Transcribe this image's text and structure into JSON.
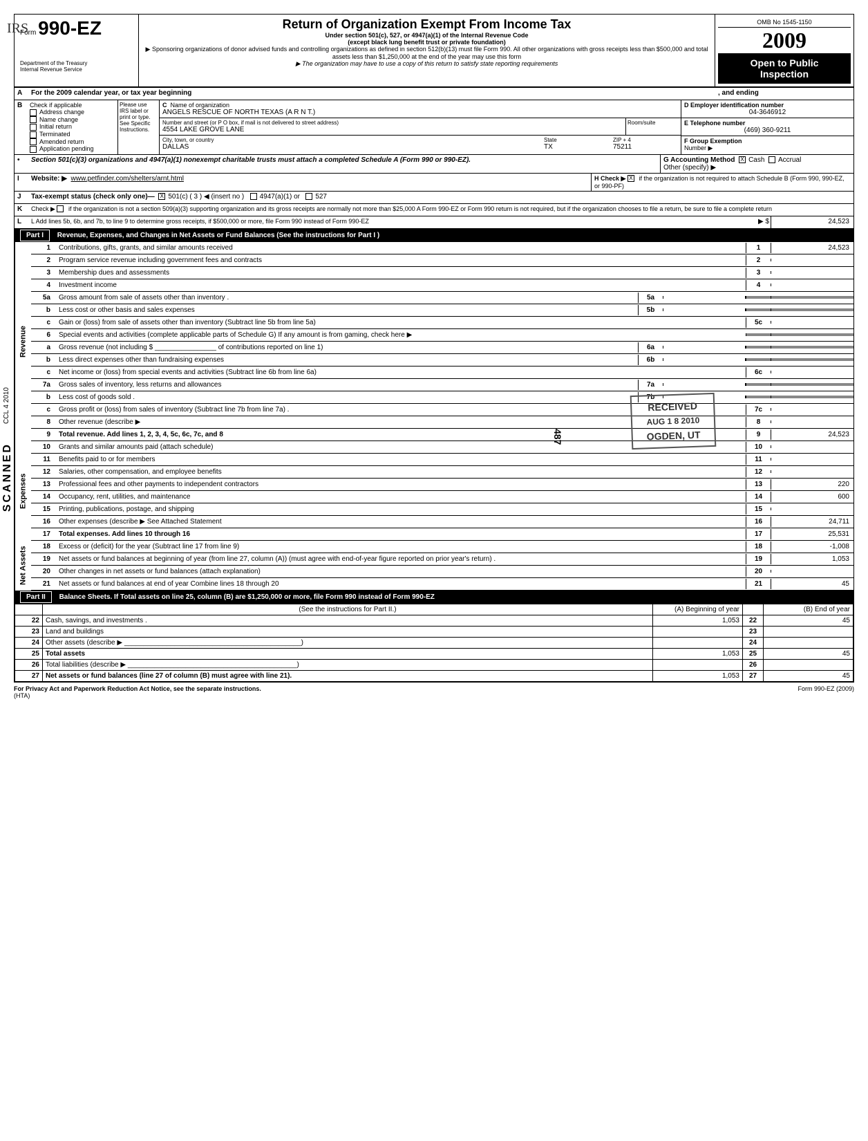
{
  "handwritten_margin": "IRS",
  "header": {
    "form_word": "Form",
    "form_number": "990-EZ",
    "dept": "Department of the Treasury",
    "irs": "Internal Revenue Service",
    "title": "Return of Organization Exempt From Income Tax",
    "subtitle1": "Under section 501(c), 527, or 4947(a)(1) of the Internal Revenue Code",
    "subtitle2": "(except black lung benefit trust or private foundation)",
    "sponsor_note": "▶ Sponsoring organizations of donor advised funds and controlling organizations as defined in section 512(b)(13) must file Form 990. All other organizations with gross receipts less than $500,000 and total assets less than $1,250,000 at the end of the year may use this form",
    "copy_note": "▶ The organization may have to use a copy of this return to satisfy state reporting requirements",
    "omb": "OMB No 1545-1150",
    "year": "2009",
    "open_public": "Open to Public",
    "inspection": "Inspection"
  },
  "section_a": {
    "label": "For the 2009 calendar year, or tax year beginning",
    "ending": ", and ending"
  },
  "section_b": {
    "header": "Check if applicable",
    "please": "Please use IRS label or print or type. See Specific Instructions.",
    "items": [
      "Address change",
      "Name change",
      "Initial return",
      "Terminated",
      "Amended return",
      "Application pending"
    ],
    "c_label": "C  Name of organization",
    "org_name": "ANGELS RESCUE OF NORTH TEXAS (A R N T.)",
    "addr_label": "Number and street (or P O box, if mail is not delivered to street address)",
    "room_label": "Room/suite",
    "street": "4554 LAKE GROVE LANE",
    "city_label": "City, town, or country",
    "state_label": "State",
    "zip_label": "ZIP + 4",
    "city": "DALLAS",
    "state": "TX",
    "zip": "75211",
    "d_label": "D  Employer identification number",
    "ein": "04-3646912",
    "e_label": "E  Telephone number",
    "phone": "(469) 360-9211",
    "f_label": "F  Group Exemption",
    "f_label2": "Number  ▶"
  },
  "bullet_501c3": "Section 501(c)(3) organizations and 4947(a)(1) nonexempt charitable trusts must attach a completed Schedule A (Form 990 or 990-EZ).",
  "g_label": "G  Accounting Method",
  "g_cash": "Cash",
  "g_accrual": "Accrual",
  "g_other": "Other (specify) ▶",
  "h_label": "H  Check ▶",
  "h_text": "if the organization is not required to attach Schedule B (Form 990, 990-EZ, or 990-PF)",
  "i_label": "Website: ▶",
  "website": "www.petfinder.com/shelters/arnt.html",
  "j_label": "Tax-exempt status (check only one)—",
  "j_501c": "501(c) (   3   ) ◀ (insert no )",
  "j_4947": "4947(a)(1) or",
  "j_527": "527",
  "k_label": "K  Check ▶",
  "k_text": "if the organization is not a section 509(a)(3) supporting organization and its gross receipts are normally not more than $25,000 A Form 990-EZ or Form 990 return is not required, but if the organization chooses to file a return, be sure to file a complete return",
  "l_label": "L  Add lines 5b, 6b, and 7b, to line 9 to determine gross receipts, if $500,000 or more, file Form 990 instead of Form 990-EZ",
  "l_arrow": "▶ $",
  "l_value": "24,523",
  "part1": {
    "title": "Revenue, Expenses, and Changes in Net Assets or Fund Balances (See the instructions for Part I )",
    "revenue_label": "Revenue",
    "expenses_label": "Expenses",
    "netassets_label": "Net Assets",
    "lines": {
      "1": {
        "label": "Contributions, gifts, grants, and similar amounts received",
        "val": "24,523"
      },
      "2": {
        "label": "Program service revenue including government fees and contracts",
        "val": ""
      },
      "3": {
        "label": "Membership dues and assessments",
        "val": ""
      },
      "4": {
        "label": "Investment income",
        "val": ""
      },
      "5a": {
        "label": "Gross amount from sale of assets other than inventory .",
        "box": "5a"
      },
      "5b": {
        "label": "Less cost or other basis and sales expenses",
        "box": "5b"
      },
      "5c": {
        "label": "Gain or (loss) from sale of assets other than inventory (Subtract line 5b from line 5a)",
        "val": ""
      },
      "6": {
        "label": "Special events and activities (complete applicable parts of Schedule G)  If any amount is from gaming, check here   ▶"
      },
      "6a": {
        "label": "Gross revenue (not including  $ ________________ of contributions reported on line 1)",
        "box": "6a"
      },
      "6b": {
        "label": "Less direct expenses other than fundraising expenses",
        "box": "6b"
      },
      "6c": {
        "label": "Net income or (loss) from special events and activities (Subtract line 6b from line 6a)",
        "val": ""
      },
      "7a": {
        "label": "Gross sales of inventory, less returns and allowances",
        "box": "7a"
      },
      "7b": {
        "label": "Less cost of goods sold .",
        "box": "7b"
      },
      "7c": {
        "label": "Gross profit or (loss) from sales of inventory (Subtract line 7b from line 7a) .",
        "val": ""
      },
      "8": {
        "label": "Other revenue (describe ▶",
        "val": ""
      },
      "9": {
        "label": "Total revenue. Add lines 1, 2, 3, 4, 5c, 6c, 7c, and 8",
        "val": "24,523"
      },
      "10": {
        "label": "Grants and similar amounts paid (attach schedule)",
        "val": ""
      },
      "11": {
        "label": "Benefits paid to or for members",
        "val": ""
      },
      "12": {
        "label": "Salaries, other compensation, and employee benefits",
        "val": ""
      },
      "13": {
        "label": "Professional fees and other payments to independent contractors",
        "val": "220"
      },
      "14": {
        "label": "Occupancy, rent, utilities, and maintenance",
        "val": "600"
      },
      "15": {
        "label": "Printing, publications, postage, and shipping",
        "val": ""
      },
      "16": {
        "label": "Other expenses (describe ▶ See Attached Statement",
        "val": "24,711"
      },
      "17": {
        "label": "Total expenses. Add lines 10 through 16",
        "val": "25,531"
      },
      "18": {
        "label": "Excess or (deficit) for the year (Subtract line 17 from line 9)",
        "val": "-1,008"
      },
      "19": {
        "label": "Net assets or fund balances at beginning of year (from line 27, column (A)) (must agree with end-of-year figure reported on prior year's return) .",
        "val": "1,053"
      },
      "20": {
        "label": "Other changes in net assets or fund balances (attach explanation)",
        "val": ""
      },
      "21": {
        "label": "Net assets or fund balances at end of year  Combine lines 18 through 20",
        "val": "45"
      }
    }
  },
  "part2": {
    "title": "Balance Sheets. If Total assets on line 25, column (B) are $1,250,000 or more, file Form 990 instead of Form 990-EZ",
    "instructions": "(See the instructions for Part II.)",
    "col_a": "(A) Beginning of year",
    "col_b": "(B) End of year",
    "rows": [
      {
        "num": "22",
        "label": "Cash, savings, and investments .",
        "a": "1,053",
        "b": "45"
      },
      {
        "num": "23",
        "label": "Land and buildings",
        "a": "",
        "b": ""
      },
      {
        "num": "24",
        "label": "Other assets (describe ▶ ______________________________________________)",
        "a": "",
        "b": ""
      },
      {
        "num": "25",
        "label": "Total assets",
        "a": "1,053",
        "b": "45"
      },
      {
        "num": "26",
        "label": "Total liabilities (describe ▶ ____________________________________________)",
        "a": "",
        "b": ""
      },
      {
        "num": "27",
        "label": "Net assets or fund balances (line 27 of column (B) must agree with line 21).",
        "a": "1,053",
        "b": "45"
      }
    ]
  },
  "footer": {
    "privacy": "For Privacy Act and Paperwork Reduction Act Notice, see the separate instructions.",
    "hta": "(HTA)",
    "form_ref": "Form 990-EZ (2009)"
  },
  "stamps": {
    "received": "RECEIVED",
    "date": "AUG 1 8 2010",
    "ogden": "OGDEN, UT",
    "num": "487",
    "scanned": "SCANNED"
  }
}
